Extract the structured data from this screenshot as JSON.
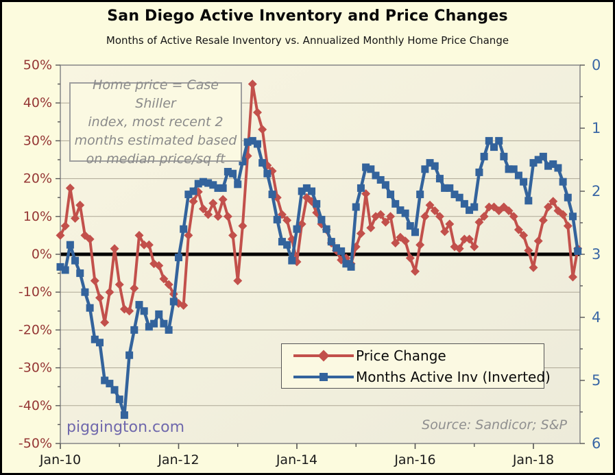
{
  "header": {
    "title": "San Diego Active Inventory and Price Changes",
    "subtitle": "Months of Active Resale Inventory vs. Annualized Monthly Home Price Change"
  },
  "annotation": {
    "lines": [
      "Home price = Case Shiller",
      "index, most recent 2",
      "months estimated based",
      "on median price/sq ft"
    ]
  },
  "watermark": "piggington.com",
  "source": "Source: Sandicor; S&P",
  "legend": {
    "items": [
      {
        "label": "Price Change",
        "color": "#C2504B",
        "marker": "diamond"
      },
      {
        "label": "Months Active Inv (Inverted)",
        "color": "#33639C",
        "marker": "square"
      }
    ]
  },
  "colors": {
    "page_bg": "#FCFBDE",
    "plot_bg_light": "#F8F5E1",
    "plot_bg_dark": "#EDEBDA",
    "gridline": "#ada795",
    "plot_border": "#8c8c8c",
    "zero_line": "#000000",
    "left_axis_text": "#953735",
    "right_axis_text": "#3A67A5",
    "x_axis_text": "#1a1a1a",
    "price_series": "#C2504B",
    "inventory_series": "#33639C"
  },
  "chart_data": {
    "type": "line",
    "title": "San Diego Active Inventory and Price Changes",
    "subtitle": "Months of Active Resale Inventory vs. Annualized Monthly Home Price Change",
    "x_start_month": "Jan-2010",
    "x_end_month": "Oct-2018",
    "x_frequency": "monthly",
    "x_major_ticks": [
      {
        "month_index": 0,
        "label": "Jan-10"
      },
      {
        "month_index": 24,
        "label": "Jan-12"
      },
      {
        "month_index": 48,
        "label": "Jan-14"
      },
      {
        "month_index": 72,
        "label": "Jan-16"
      },
      {
        "month_index": 96,
        "label": "Jan-18"
      }
    ],
    "x_minor_tick_month_indices": [
      12,
      36,
      60,
      84
    ],
    "left_axis": {
      "title": "Annualized Monthly Home Price Change",
      "unit": "percent",
      "range": [
        -50,
        50
      ],
      "major_ticks": [
        50,
        40,
        30,
        20,
        10,
        0,
        -10,
        -20,
        -30,
        -40,
        -50
      ],
      "tick_label_suffix": "%",
      "minor_tick_step": 5
    },
    "right_axis": {
      "title": "Months of Active Resale Inventory",
      "unit": "months",
      "inverted": true,
      "range_top_to_bottom": [
        0,
        6
      ],
      "major_ticks": [
        0,
        1,
        2,
        3,
        4,
        5,
        6
      ],
      "minor_tick_step": 0.5
    },
    "zero_reference_line": {
      "value": 0,
      "axis": "left",
      "thickness_px": 5
    },
    "grid": "horizontal-only",
    "legend_position": "inside-bottom-center",
    "series": [
      {
        "name": "Price Change",
        "axis": "left",
        "color": "#C2504B",
        "marker": "diamond",
        "values": [
          5,
          7.5,
          17.5,
          9.5,
          13,
          5,
          4,
          -7,
          -11.5,
          -18,
          -10,
          1.5,
          -8,
          -14.5,
          -15,
          -9,
          5,
          2.5,
          2.5,
          -2.5,
          -3,
          -6.5,
          -8,
          -10.5,
          -13,
          -13.5,
          5,
          14,
          16.5,
          12,
          10.5,
          13.5,
          10,
          14.5,
          10,
          5,
          -7,
          7.5,
          26,
          45,
          37.5,
          33,
          23.5,
          22,
          15,
          10.5,
          9,
          4,
          -2,
          8,
          15,
          14,
          11,
          8,
          6.5,
          3,
          1,
          -1.5,
          -1,
          -2.5,
          2,
          5.5,
          16,
          7,
          10,
          10.5,
          8.5,
          10,
          3,
          4.5,
          3.5,
          -1,
          -4.5,
          2.5,
          10,
          13,
          11.5,
          10,
          6,
          8,
          2,
          1.5,
          4,
          4,
          2,
          8.5,
          10,
          12.5,
          12.5,
          11.5,
          12.5,
          11.5,
          10,
          6.5,
          5,
          1,
          -3.5,
          3.5,
          9,
          12.5,
          14,
          11.5,
          10.5,
          7.5,
          -6,
          1.5
        ]
      },
      {
        "name": "Months Active Inv (Inverted)",
        "axis": "right",
        "color": "#33639C",
        "marker": "square",
        "values": [
          3.2,
          3.25,
          2.85,
          3.1,
          3.3,
          3.6,
          3.85,
          4.35,
          4.4,
          5,
          5.05,
          5.15,
          5.3,
          5.55,
          4.6,
          4.2,
          3.8,
          3.9,
          4.15,
          4.1,
          3.95,
          4.1,
          4.2,
          3.75,
          3.05,
          2.6,
          2.05,
          2,
          1.88,
          1.85,
          1.87,
          1.9,
          1.95,
          1.95,
          1.69,
          1.72,
          1.89,
          1.53,
          1.22,
          1.2,
          1.25,
          1.55,
          1.72,
          2.05,
          2.45,
          2.8,
          2.85,
          3.1,
          2.6,
          2,
          1.95,
          2,
          2.2,
          2.45,
          2.6,
          2.8,
          2.9,
          2.95,
          3.15,
          3.2,
          2.25,
          1.95,
          1.62,
          1.65,
          1.75,
          1.82,
          1.9,
          2.05,
          2.2,
          2.3,
          2.35,
          2.55,
          2.65,
          2.05,
          1.65,
          1.55,
          1.6,
          1.8,
          1.95,
          1.95,
          2.05,
          2.1,
          2.2,
          2.3,
          2.25,
          1.7,
          1.45,
          1.2,
          1.3,
          1.2,
          1.45,
          1.65,
          1.65,
          1.75,
          1.85,
          2.15,
          1.55,
          1.5,
          1.45,
          1.6,
          1.57,
          1.63,
          1.85,
          2.1,
          2.4,
          2.95
        ]
      }
    ]
  }
}
